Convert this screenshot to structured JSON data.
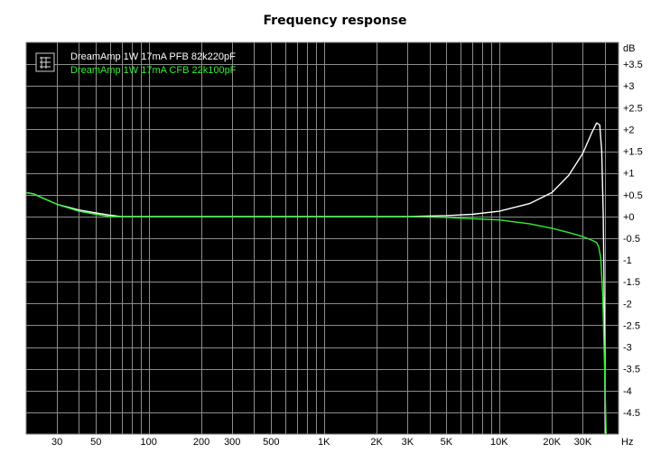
{
  "chart_data": {
    "type": "line",
    "title": "Frequency response",
    "x_unit": "Hz",
    "y_unit": "dB",
    "x_scale": "log",
    "xlim": [
      20,
      48000
    ],
    "ylim": [
      -5,
      4
    ],
    "grid": true,
    "legend_position": "top-left",
    "background": "#000000",
    "x_ticks": [
      {
        "value": 30,
        "label": "30"
      },
      {
        "value": 50,
        "label": "50"
      },
      {
        "value": 100,
        "label": "100"
      },
      {
        "value": 200,
        "label": "200"
      },
      {
        "value": 300,
        "label": "300"
      },
      {
        "value": 500,
        "label": "500"
      },
      {
        "value": 1000,
        "label": "1K"
      },
      {
        "value": 2000,
        "label": "2K"
      },
      {
        "value": 3000,
        "label": "3K"
      },
      {
        "value": 5000,
        "label": "5K"
      },
      {
        "value": 10000,
        "label": "10K"
      },
      {
        "value": 20000,
        "label": "20K"
      },
      {
        "value": 30000,
        "label": "30K"
      }
    ],
    "y_ticks": [
      {
        "value": 3.5,
        "label": "+3.5"
      },
      {
        "value": 3,
        "label": "+3"
      },
      {
        "value": 2.5,
        "label": "+2.5"
      },
      {
        "value": 2,
        "label": "+2"
      },
      {
        "value": 1.5,
        "label": "+1.5"
      },
      {
        "value": 1,
        "label": "+1"
      },
      {
        "value": 0.5,
        "label": "+0.5"
      },
      {
        "value": 0,
        "label": "+0"
      },
      {
        "value": -0.5,
        "label": "-0.5"
      },
      {
        "value": -1,
        "label": "-1"
      },
      {
        "value": -1.5,
        "label": "-1.5"
      },
      {
        "value": -2,
        "label": "-2"
      },
      {
        "value": -2.5,
        "label": "-2.5"
      },
      {
        "value": -3,
        "label": "-3"
      },
      {
        "value": -3.5,
        "label": "-3.5"
      },
      {
        "value": -4,
        "label": "-4"
      },
      {
        "value": -4.5,
        "label": "-4.5"
      }
    ],
    "series": [
      {
        "name": "DreamAmp 1W 17mA PFB 82k220pF",
        "color": "#ffffff",
        "points": [
          [
            20,
            0.55
          ],
          [
            22,
            0.52
          ],
          [
            25,
            0.42
          ],
          [
            30,
            0.28
          ],
          [
            40,
            0.15
          ],
          [
            50,
            0.08
          ],
          [
            60,
            0.03
          ],
          [
            70,
            0.0
          ],
          [
            100,
            0.0
          ],
          [
            300,
            0.0
          ],
          [
            1000,
            0.0
          ],
          [
            3000,
            0.0
          ],
          [
            5000,
            0.02
          ],
          [
            7000,
            0.05
          ],
          [
            10000,
            0.12
          ],
          [
            15000,
            0.3
          ],
          [
            20000,
            0.55
          ],
          [
            25000,
            0.95
          ],
          [
            30000,
            1.45
          ],
          [
            34000,
            1.95
          ],
          [
            36000,
            2.15
          ],
          [
            37500,
            2.1
          ],
          [
            38500,
            1.5
          ],
          [
            39300,
            0.0
          ],
          [
            39800,
            -2.0
          ],
          [
            40300,
            -5.0
          ]
        ]
      },
      {
        "name": "DreamAmp 1W 17mA CFB 22k100pF",
        "color": "#33ee33",
        "points": [
          [
            20,
            0.55
          ],
          [
            22,
            0.52
          ],
          [
            25,
            0.42
          ],
          [
            30,
            0.28
          ],
          [
            40,
            0.12
          ],
          [
            50,
            0.05
          ],
          [
            60,
            0.0
          ],
          [
            100,
            0.0
          ],
          [
            300,
            0.0
          ],
          [
            1000,
            0.0
          ],
          [
            3000,
            0.0
          ],
          [
            5000,
            -0.02
          ],
          [
            7000,
            -0.05
          ],
          [
            10000,
            -0.08
          ],
          [
            15000,
            -0.17
          ],
          [
            20000,
            -0.27
          ],
          [
            25000,
            -0.37
          ],
          [
            30000,
            -0.46
          ],
          [
            34000,
            -0.55
          ],
          [
            36000,
            -0.6
          ],
          [
            37000,
            -0.7
          ],
          [
            38000,
            -0.95
          ],
          [
            39000,
            -1.8
          ],
          [
            40000,
            -3.5
          ],
          [
            40800,
            -5.0
          ]
        ]
      }
    ]
  }
}
